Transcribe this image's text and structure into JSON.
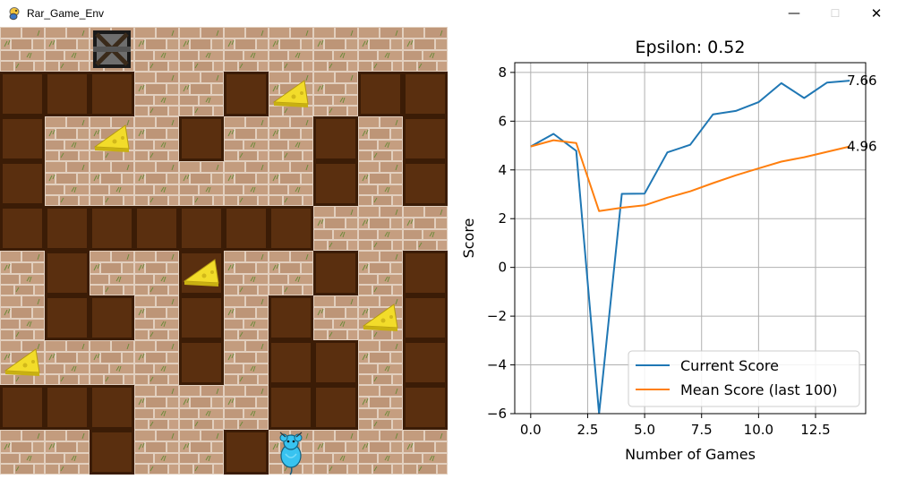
{
  "window": {
    "title": "Rar_Game_Env",
    "icon": "pygame-snake-icon",
    "controls": [
      "minimize-icon",
      "maximize-icon",
      "close-icon"
    ]
  },
  "game": {
    "grid_size": 10,
    "tile_key": {
      "#": "dirt-wall",
      ".": "stone-floor"
    },
    "grid": [
      "..........",
      "###..#..##",
      "#...#..#.#",
      "#......#.#",
      "#######...",
      ".#..#..#.#",
      ".##.#.#..#",
      "....#.##.#",
      "###...##.#",
      "..#..#...."
    ],
    "exit_cell": {
      "row": 0,
      "col": 2
    },
    "cheese_cells": [
      {
        "row": 1,
        "col": 6
      },
      {
        "row": 2,
        "col": 2
      },
      {
        "row": 5,
        "col": 4
      },
      {
        "row": 6,
        "col": 8
      },
      {
        "row": 7,
        "col": 0
      }
    ],
    "mouse_cell": {
      "row": 9,
      "col": 6
    },
    "colors": {
      "dirt": "#5a2f0f",
      "dirt_edge": "#3b1c06",
      "stone": "#c29a7c",
      "stone_mortar": "#e6d4c4",
      "cheese": "#f2dc2a",
      "mouse": "#38c3f0"
    }
  },
  "chart_data": {
    "type": "line",
    "title": "Epsilon: 0.52",
    "xlabel": "Number of Games",
    "ylabel": "Score",
    "xlim": [
      -0.7,
      14.7
    ],
    "ylim": [
      -6,
      8.4
    ],
    "xticks": [
      0.0,
      2.5,
      5.0,
      7.5,
      10.0,
      12.5
    ],
    "xtick_labels": [
      "0.0",
      "2.5",
      "5.0",
      "7.5",
      "10.0",
      "12.5"
    ],
    "yticks": [
      -6,
      -4,
      -2,
      0,
      2,
      4,
      6,
      8
    ],
    "ytick_labels": [
      "−6",
      "−4",
      "−2",
      "0",
      "2",
      "4",
      "6",
      "8"
    ],
    "grid": true,
    "legend_position": "lower-right",
    "x": [
      0,
      1,
      2,
      3,
      4,
      5,
      6,
      7,
      8,
      9,
      10,
      11,
      12,
      13,
      14
    ],
    "series": [
      {
        "name": "Current Score",
        "color": "#1f77b4",
        "values": [
          4.96,
          5.48,
          4.78,
          -6.0,
          3.02,
          3.03,
          4.72,
          5.03,
          6.28,
          6.42,
          6.78,
          7.56,
          6.95,
          7.58,
          7.66
        ]
      },
      {
        "name": "Mean Score (last 100)",
        "color": "#ff7f0e",
        "values": [
          4.96,
          5.22,
          5.1,
          2.31,
          2.45,
          2.55,
          2.86,
          3.12,
          3.46,
          3.78,
          4.06,
          4.34,
          4.52,
          4.74,
          4.96
        ]
      }
    ],
    "end_labels": [
      "7.66",
      "4.96"
    ]
  }
}
